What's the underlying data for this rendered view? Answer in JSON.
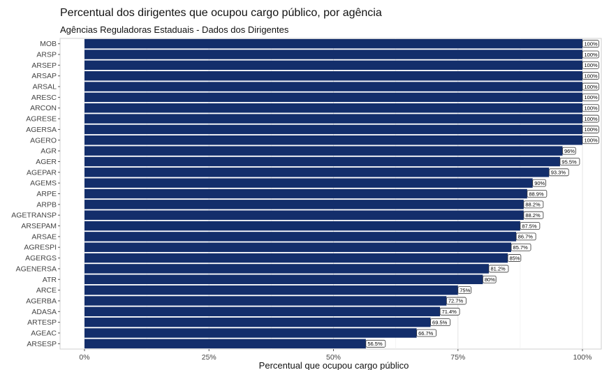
{
  "chart_data": {
    "type": "bar",
    "orientation": "horizontal",
    "title": "Percentual dos dirigentes que ocupou cargo público, por agência",
    "subtitle": "Agências Reguladoras Estaduais - Dados dos Dirigentes",
    "xlabel": "Percentual que ocupou cargo público",
    "ylabel": "",
    "xlim": [
      0,
      100
    ],
    "x_ticks": [
      "0%",
      "25%",
      "50%",
      "75%",
      "100%"
    ],
    "grid": true,
    "bar_color": "#132e6b",
    "categories": [
      "MOB",
      "ARSP",
      "ARSEP",
      "ARSAP",
      "ARSAL",
      "ARESC",
      "ARCON",
      "AGRESE",
      "AGERSA",
      "AGERO",
      "AGR",
      "AGER",
      "AGEPAR",
      "AGEMS",
      "ARPE",
      "ARPB",
      "AGETRANSP",
      "ARSEPAM",
      "ARSAE",
      "AGRESPI",
      "AGERGS",
      "AGENERSA",
      "ATR",
      "ARCE",
      "AGERBA",
      "ADASA",
      "ARTESP",
      "AGEAC",
      "ARSESP"
    ],
    "values": [
      100,
      100,
      100,
      100,
      100,
      100,
      100,
      100,
      100,
      100,
      96,
      95.5,
      93.3,
      90,
      88.9,
      88.2,
      88.2,
      87.5,
      86.7,
      85.7,
      85,
      81.2,
      80,
      75,
      72.7,
      71.4,
      69.5,
      66.7,
      56.5
    ],
    "data_labels": [
      "100%",
      "100%",
      "100%",
      "100%",
      "100%",
      "100%",
      "100%",
      "100%",
      "100%",
      "100%",
      "96%",
      "95.5%",
      "93.3%",
      "90%",
      "88.9%",
      "88.2%",
      "88.2%",
      "87.5%",
      "86.7%",
      "85.7%",
      "85%",
      "81.2%",
      "80%",
      "75%",
      "72.7%",
      "71.4%",
      "69.5%",
      "66.7%",
      "56.5%"
    ]
  }
}
